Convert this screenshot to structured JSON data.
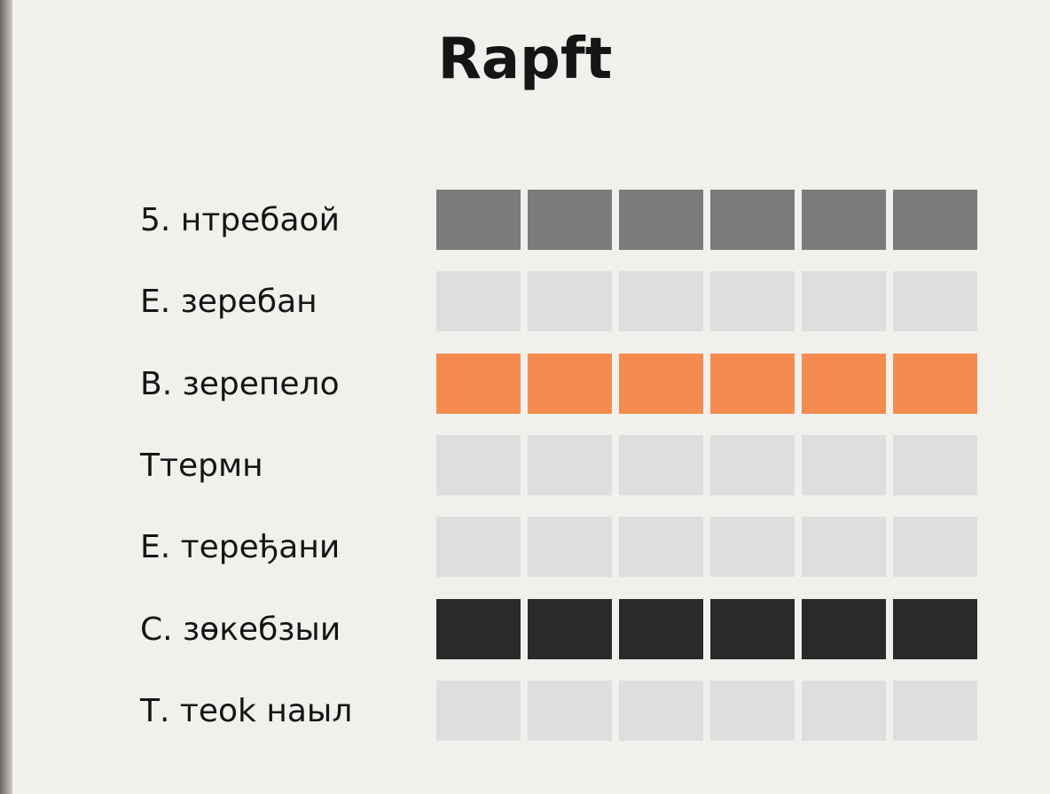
{
  "header": {
    "title": "Rapft"
  },
  "rows": [
    {
      "label": "5. нтребаой",
      "color": "#7b7b7b"
    },
    {
      "label": "Е. зеребан",
      "color": "#dedede"
    },
    {
      "label": "В. зерепело",
      "color": "#f48c50"
    },
    {
      "label": "Ттермн",
      "color": "#dedede"
    },
    {
      "label": "Е. терeђани",
      "color": "#dedede"
    },
    {
      "label": "С. зөкебзыи",
      "color": "#2a2a2a"
    },
    {
      "label": "Т. теok наыл",
      "color": "#dedede"
    }
  ]
}
